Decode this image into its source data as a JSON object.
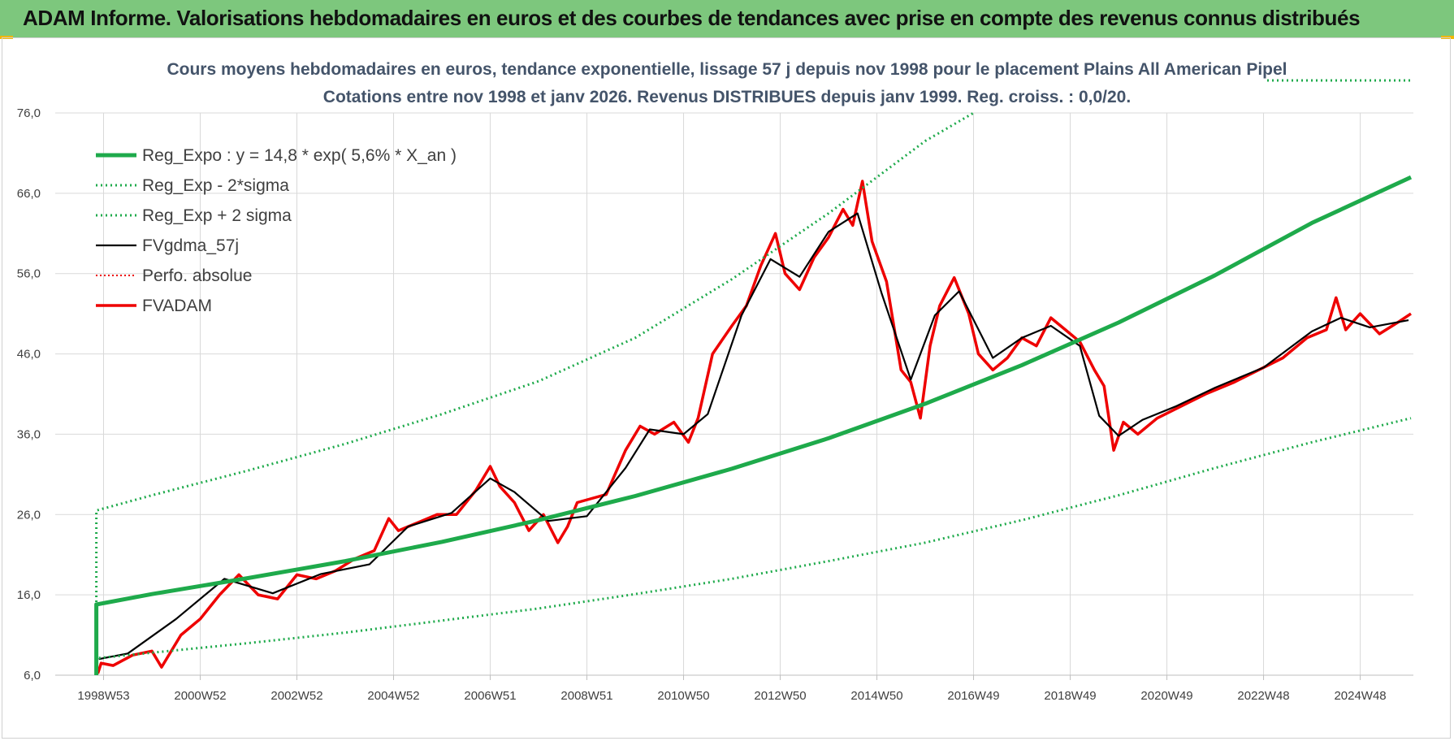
{
  "header": {
    "title": "ADAM Informe. Valorisations hebdomadaires en euros et des courbes de tendances avec prise en compte des revenus connus distribués"
  },
  "colors": {
    "header_bg": "#7dc77d",
    "reg_expo": "#1eaa4b",
    "fv_adam": "#ee0000",
    "fvgdma": "#000000",
    "grid": "#d9d9d9",
    "corner": "#f2b705"
  },
  "chart_data": {
    "type": "line",
    "title": "Cours moyens hebdomadaires en euros, tendance exponentielle, lissage 57 j depuis nov 1998 pour le placement Plains All American Pipel",
    "subtitle": "Cotations entre nov 1998 et janv 2026. Revenus DISTRIBUES depuis janv 1999. Reg. croiss. : 0,0/20.",
    "xlabel": "",
    "ylabel": "",
    "ylim": [
      6,
      76
    ],
    "yticks": [
      "6,0",
      "16,0",
      "26,0",
      "36,0",
      "46,0",
      "56,0",
      "66,0",
      "76,0"
    ],
    "xticks": [
      "1998W53",
      "2000W52",
      "2002W52",
      "2004W52",
      "2006W51",
      "2008W51",
      "2010W50",
      "2012W50",
      "2014W50",
      "2016W49",
      "2018W49",
      "2020W49",
      "2022W48",
      "2024W48"
    ],
    "xtick_years": [
      1999,
      2001,
      2003,
      2005,
      2007,
      2009,
      2011,
      2013,
      2015,
      2017,
      2019,
      2021,
      2023,
      2025
    ],
    "xlim": [
      1998.0,
      2026.1
    ],
    "grid": true,
    "legend_position": "top-left",
    "legend": [
      "Reg_Expo : y = 14,8 * exp( 5,6% *  X_an )",
      "Reg_Exp - 2*sigma",
      "Reg_Exp + 2 sigma",
      "FVgdma_57j",
      "Perfo. absolue",
      "FVADAM"
    ],
    "series": [
      {
        "name": "Reg_Expo : y = 14,8 * exp( 5,6% *  X_an )",
        "style": "solid-thick",
        "x": [
          1998.85,
          2000,
          2002,
          2004,
          2006,
          2008,
          2010,
          2012,
          2014,
          2016,
          2018,
          2020,
          2022,
          2024,
          2026.05
        ],
        "values": [
          14.8,
          16.1,
          18.1,
          20.2,
          22.6,
          25.3,
          28.3,
          31.7,
          35.5,
          39.8,
          44.6,
          49.9,
          55.8,
          62.3,
          68.0
        ]
      },
      {
        "name": "Reg_Exp - 2*sigma",
        "style": "dotted",
        "x": [
          1998.85,
          2000,
          2002,
          2004,
          2006,
          2008,
          2010,
          2012,
          2014,
          2016,
          2018,
          2020,
          2022,
          2024,
          2026.05
        ],
        "values": [
          8.1,
          8.8,
          10.0,
          11.3,
          12.8,
          14.3,
          16.1,
          18.0,
          20.2,
          22.5,
          25.3,
          28.4,
          31.8,
          35.0,
          38.0
        ]
      },
      {
        "name": "Reg_Exp + 2 sigma",
        "style": "dotted",
        "x": [
          1998.85,
          2000,
          2002,
          2004,
          2006,
          2008,
          2010,
          2012,
          2014,
          2016,
          2017.0
        ],
        "values": [
          26.5,
          28.4,
          31.5,
          34.8,
          38.5,
          42.6,
          48.0,
          55.3,
          63.5,
          72.5,
          76.0
        ]
      },
      {
        "name": "FVgdma_57j",
        "style": "solid-thin",
        "x": [
          1998.9,
          1999.5,
          2000.5,
          2001.5,
          2002.5,
          2003.5,
          2004.5,
          2005.3,
          2006.2,
          2007.0,
          2007.5,
          2008.2,
          2009.0,
          2009.8,
          2010.3,
          2011.0,
          2011.5,
          2012.2,
          2012.8,
          2013.4,
          2014.0,
          2014.6,
          2015.1,
          2015.7,
          2016.2,
          2016.7,
          2017.4,
          2018.0,
          2018.6,
          2019.2,
          2019.6,
          2020.0,
          2020.5,
          2021.2,
          2022.0,
          2023.0,
          2024.0,
          2024.6,
          2025.2,
          2026.0
        ],
        "values": [
          8,
          8.7,
          13,
          18,
          16.2,
          18.6,
          19.8,
          24.5,
          26.2,
          30.5,
          28.8,
          25.2,
          25.8,
          31.8,
          36.6,
          36.0,
          38.5,
          50.8,
          57.8,
          55.6,
          61.2,
          63.5,
          53.5,
          42.8,
          50.8,
          53.8,
          45.5,
          48.0,
          49.5,
          47.0,
          38.3,
          35.8,
          37.8,
          39.5,
          41.8,
          44.3,
          48.8,
          50.5,
          49.3,
          50.2
        ]
      },
      {
        "name": "Perfo. absolue",
        "style": "dotted-red",
        "x": [],
        "values": []
      },
      {
        "name": "FVADAM",
        "style": "solid-red",
        "x": [
          1998.88,
          1998.95,
          1999.2,
          1999.6,
          2000.0,
          2000.2,
          2000.6,
          2001.0,
          2001.4,
          2001.8,
          2002.2,
          2002.6,
          2003.0,
          2003.4,
          2003.8,
          2004.2,
          2004.6,
          2004.9,
          2005.1,
          2005.5,
          2005.9,
          2006.3,
          2006.7,
          2007.0,
          2007.2,
          2007.5,
          2007.8,
          2008.1,
          2008.4,
          2008.6,
          2008.8,
          2009.1,
          2009.4,
          2009.8,
          2010.1,
          2010.4,
          2010.8,
          2011.1,
          2011.3,
          2011.6,
          2012.0,
          2012.3,
          2012.6,
          2012.9,
          2013.1,
          2013.4,
          2013.7,
          2014.0,
          2014.3,
          2014.5,
          2014.7,
          2014.9,
          2015.2,
          2015.5,
          2015.7,
          2015.9,
          2016.1,
          2016.3,
          2016.6,
          2016.9,
          2017.1,
          2017.4,
          2017.7,
          2018.0,
          2018.3,
          2018.6,
          2018.9,
          2019.2,
          2019.5,
          2019.7,
          2019.9,
          2020.1,
          2020.4,
          2020.8,
          2021.3,
          2021.8,
          2022.4,
          2022.9,
          2023.4,
          2023.9,
          2024.3,
          2024.5,
          2024.7,
          2025.0,
          2025.4,
          2025.8,
          2026.05
        ],
        "values": [
          6.2,
          7.5,
          7.2,
          8.5,
          9.0,
          7.0,
          11.0,
          13.0,
          16.0,
          18.5,
          16.0,
          15.5,
          18.5,
          18.0,
          19.0,
          20.5,
          21.5,
          25.5,
          24.0,
          25.0,
          26.0,
          26.0,
          29.0,
          32.0,
          29.5,
          27.5,
          24.0,
          26.0,
          22.5,
          24.5,
          27.5,
          28.0,
          28.5,
          34.0,
          37.0,
          36.0,
          37.5,
          35.0,
          38.0,
          46.0,
          49.5,
          52.0,
          57.0,
          61.0,
          56.0,
          54.0,
          58.0,
          60.5,
          64.0,
          62.0,
          67.5,
          60.0,
          55.0,
          44.0,
          42.5,
          38.0,
          47.0,
          52.0,
          55.5,
          51.0,
          46.0,
          44.0,
          45.5,
          48.0,
          47.0,
          50.5,
          49.0,
          47.5,
          44.0,
          42.0,
          34.0,
          37.5,
          36.0,
          38.0,
          39.5,
          41.0,
          42.5,
          44.0,
          45.5,
          48.0,
          49.0,
          53.0,
          49.0,
          51.0,
          48.5,
          50.0,
          51.0
        ]
      }
    ]
  }
}
